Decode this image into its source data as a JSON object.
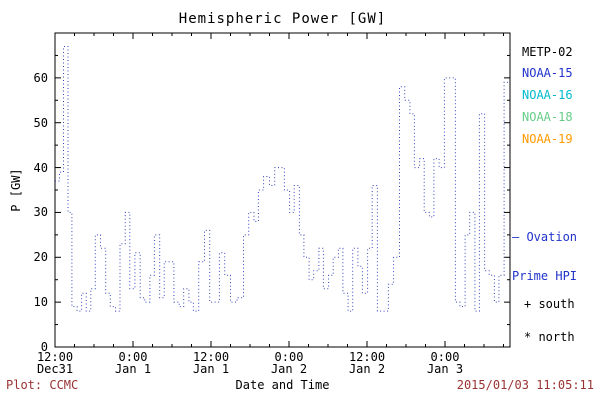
{
  "footer": {
    "plot_credit": "Plot: CCMC",
    "timestamp": "2015/01/03 11:05:11",
    "color": "#993333"
  },
  "legend": {
    "satellites": [
      {
        "label": "METP-02",
        "color": "#000000"
      },
      {
        "label": "NOAA-15",
        "color": "#2233cc"
      },
      {
        "label": "NOAA-16",
        "color": "#00bbcc"
      },
      {
        "label": "NOAA-18",
        "color": "#66cc88"
      },
      {
        "label": "NOAA-19",
        "color": "#ff9900"
      }
    ],
    "ovation_line1": "— Ovation",
    "ovation_line2": "Prime HPI",
    "ovation_color": "#2233cc",
    "south_marker": "+ south",
    "north_marker": "* north"
  },
  "chart_data": {
    "type": "line",
    "line_style": "dotted-step",
    "color": "#3344bb",
    "title": "Hemispheric Power [GW]",
    "xlabel": "Date and Time",
    "ylabel": "P [GW]",
    "ylim": [
      0,
      70
    ],
    "y_ticks": [
      0,
      10,
      20,
      30,
      40,
      50,
      60
    ],
    "x_range_hours": [
      0,
      70
    ],
    "x_ticks": [
      {
        "hour": 0,
        "time": "12:00",
        "date": "Dec31"
      },
      {
        "hour": 12,
        "time": "0:00",
        "date": "Jan 1"
      },
      {
        "hour": 24,
        "time": "12:00",
        "date": "Jan 1"
      },
      {
        "hour": 36,
        "time": "0:00",
        "date": "Jan 2"
      },
      {
        "hour": 48,
        "time": "12:00",
        "date": "Jan 2"
      },
      {
        "hour": 60,
        "time": "0:00",
        "date": "Jan 3"
      }
    ],
    "series": [
      {
        "name": "Ovation Prime HPI",
        "steps": [
          [
            0,
            37
          ],
          [
            0.7,
            39
          ],
          [
            1.3,
            67
          ],
          [
            2.0,
            30
          ],
          [
            2.6,
            9
          ],
          [
            3.4,
            8
          ],
          [
            4.1,
            12
          ],
          [
            4.8,
            8
          ],
          [
            5.5,
            13
          ],
          [
            6.2,
            25
          ],
          [
            7.0,
            22
          ],
          [
            7.8,
            12
          ],
          [
            8.5,
            9
          ],
          [
            9.3,
            8
          ],
          [
            10.0,
            23
          ],
          [
            10.8,
            30
          ],
          [
            11.5,
            13
          ],
          [
            12.3,
            21
          ],
          [
            13.1,
            11
          ],
          [
            13.8,
            10
          ],
          [
            14.6,
            16
          ],
          [
            15.3,
            25
          ],
          [
            16.1,
            11
          ],
          [
            16.8,
            19
          ],
          [
            17.6,
            19
          ],
          [
            18.3,
            10
          ],
          [
            19.1,
            9
          ],
          [
            19.8,
            13
          ],
          [
            20.6,
            10
          ],
          [
            21.3,
            8
          ],
          [
            22.1,
            19
          ],
          [
            23.0,
            26
          ],
          [
            23.8,
            10
          ],
          [
            24.6,
            10
          ],
          [
            25.3,
            21
          ],
          [
            26.1,
            16
          ],
          [
            27.0,
            10
          ],
          [
            28.0,
            11
          ],
          [
            29.0,
            25
          ],
          [
            29.8,
            30
          ],
          [
            30.6,
            28
          ],
          [
            31.3,
            35
          ],
          [
            32.1,
            38
          ],
          [
            33.0,
            36
          ],
          [
            33.8,
            40
          ],
          [
            34.6,
            40
          ],
          [
            35.3,
            35
          ],
          [
            36.1,
            30
          ],
          [
            36.8,
            36
          ],
          [
            37.6,
            25
          ],
          [
            38.3,
            20
          ],
          [
            39.1,
            15
          ],
          [
            39.8,
            17
          ],
          [
            40.6,
            22
          ],
          [
            41.3,
            13
          ],
          [
            42.1,
            16
          ],
          [
            42.8,
            20
          ],
          [
            43.6,
            22
          ],
          [
            44.3,
            12
          ],
          [
            45.1,
            8
          ],
          [
            45.8,
            22
          ],
          [
            46.6,
            18
          ],
          [
            47.3,
            12
          ],
          [
            48.1,
            22
          ],
          [
            48.8,
            36
          ],
          [
            49.6,
            8
          ],
          [
            50.5,
            8
          ],
          [
            51.3,
            14
          ],
          [
            52.1,
            20
          ],
          [
            53.0,
            58
          ],
          [
            53.8,
            55
          ],
          [
            54.6,
            52
          ],
          [
            55.3,
            40
          ],
          [
            56.1,
            42
          ],
          [
            56.8,
            30
          ],
          [
            57.6,
            29
          ],
          [
            58.3,
            42
          ],
          [
            59.1,
            40
          ],
          [
            59.9,
            60
          ],
          [
            60.8,
            60
          ],
          [
            61.6,
            10
          ],
          [
            62.3,
            9
          ],
          [
            63.1,
            25
          ],
          [
            63.8,
            30
          ],
          [
            64.6,
            8
          ],
          [
            65.3,
            52
          ],
          [
            66.1,
            17
          ],
          [
            66.8,
            16
          ],
          [
            67.6,
            10
          ],
          [
            68.3,
            16
          ],
          [
            69.1,
            59
          ]
        ]
      }
    ]
  }
}
